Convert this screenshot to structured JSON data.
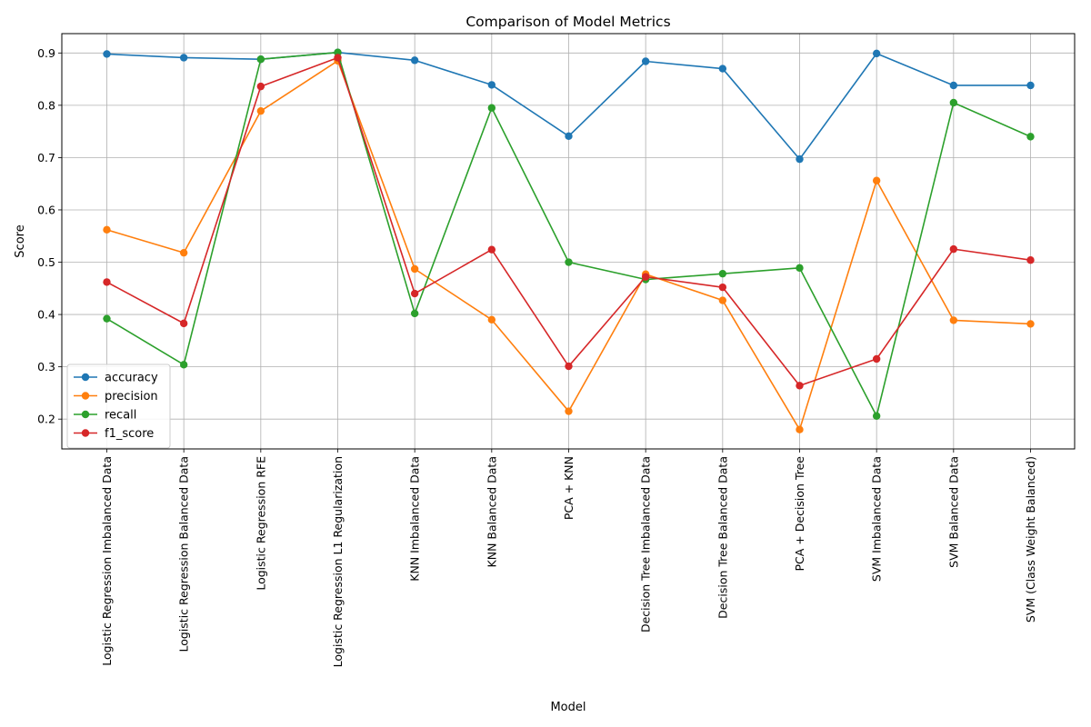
{
  "chart_data": {
    "type": "line",
    "title": "Comparison of Model Metrics",
    "xlabel": "Model",
    "ylabel": "Score",
    "ylim": [
      0.143,
      0.937
    ],
    "yticks": [
      0.2,
      0.3,
      0.4,
      0.5,
      0.6,
      0.7,
      0.8,
      0.9
    ],
    "grid": true,
    "legend_position": "lower-left",
    "categories": [
      "Logistic Regression Imbalanced Data",
      "Logistic Regression Balanced Data",
      "Logistic Regression RFE",
      "Logistic Regression L1 Regularization",
      "KNN Imbalanced Data",
      "KNN Balanced Data",
      "PCA + KNN",
      "Decision Tree Imbalanced Data",
      "Decision Tree Balanced Data",
      "PCA + Decision Tree",
      "SVM Imbalanced Data",
      "SVM Balanced Data",
      "SVM (Class Weight Balanced)"
    ],
    "series": [
      {
        "name": "accuracy",
        "color": "#1f77b4",
        "values": [
          0.898,
          0.891,
          0.888,
          0.901,
          0.886,
          0.839,
          0.741,
          0.884,
          0.87,
          0.697,
          0.899,
          0.838,
          0.838
        ]
      },
      {
        "name": "precision",
        "color": "#ff7f0e",
        "values": [
          0.562,
          0.518,
          0.789,
          0.885,
          0.487,
          0.39,
          0.215,
          0.477,
          0.427,
          0.18,
          0.656,
          0.389,
          0.382
        ]
      },
      {
        "name": "recall",
        "color": "#2ca02c",
        "values": [
          0.392,
          0.304,
          0.888,
          0.901,
          0.402,
          0.795,
          0.5,
          0.467,
          0.478,
          0.489,
          0.206,
          0.805,
          0.74
        ]
      },
      {
        "name": "f1_score",
        "color": "#d62728",
        "values": [
          0.462,
          0.383,
          0.836,
          0.891,
          0.44,
          0.524,
          0.301,
          0.472,
          0.452,
          0.264,
          0.315,
          0.525,
          0.504
        ]
      }
    ]
  }
}
